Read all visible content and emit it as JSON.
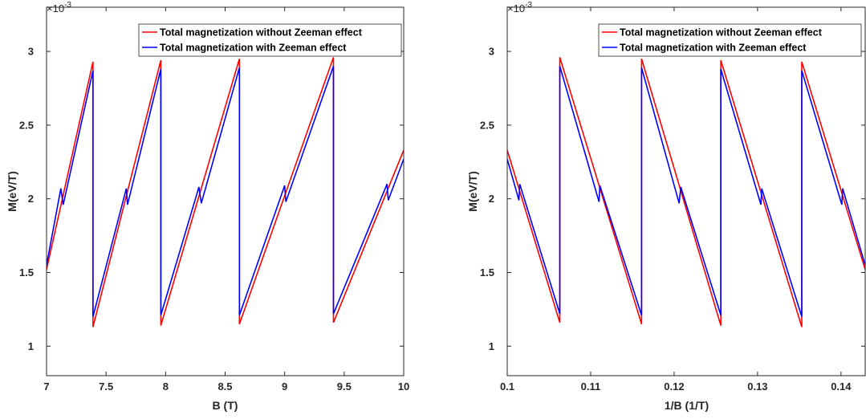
{
  "chart_data": [
    {
      "type": "line",
      "xlabel": "B (T)",
      "ylabel": "M(eV/T)",
      "exponent_base": "×10",
      "exponent_power": "-3",
      "xlim": [
        7,
        10
      ],
      "ylim": [
        0.8,
        3.3
      ],
      "xticks": [
        "7",
        "7.5",
        "8",
        "8.5",
        "9",
        "9.5",
        "10"
      ],
      "yticks": [
        "1",
        "1.5",
        "2",
        "2.5",
        "3"
      ],
      "legend_position": "top-right",
      "series": [
        {
          "name": "Total magnetization without Zeeman effect",
          "color": "#ff0000",
          "x": [
            7.0,
            7.39,
            7.39,
            7.96,
            7.96,
            8.62,
            8.62,
            9.41,
            9.41,
            10.0
          ],
          "y": [
            1.52,
            2.93,
            1.13,
            2.94,
            1.14,
            2.95,
            1.15,
            2.96,
            1.16,
            2.33
          ]
        },
        {
          "name": "Total magnetization with Zeeman effect",
          "color": "#0000ff",
          "x": [
            7.0,
            7.12,
            7.14,
            7.39,
            7.39,
            7.67,
            7.68,
            7.96,
            7.96,
            8.28,
            8.3,
            8.62,
            8.62,
            9.0,
            9.01,
            9.41,
            9.41,
            9.86,
            9.87,
            10.0
          ],
          "y": [
            1.55,
            2.07,
            1.96,
            2.87,
            1.2,
            2.07,
            1.96,
            2.88,
            1.21,
            2.08,
            1.97,
            2.89,
            1.21,
            2.09,
            1.98,
            2.9,
            1.22,
            2.1,
            1.99,
            2.27
          ]
        }
      ]
    },
    {
      "type": "line",
      "xlabel": "1/B (1/T)",
      "ylabel": "M(eV/T)",
      "exponent_base": "×10",
      "exponent_power": "-3",
      "xlim": [
        0.1,
        0.1429
      ],
      "ylim": [
        0.8,
        3.3
      ],
      "xticks": [
        "0.1",
        "0.11",
        "0.12",
        "0.13",
        "0.14"
      ],
      "yticks": [
        "1",
        "1.5",
        "2",
        "2.5",
        "3"
      ],
      "legend_position": "top-right",
      "series": [
        {
          "name": "Total magnetization without Zeeman effect",
          "color": "#ff0000",
          "x": [
            0.1,
            0.1063,
            0.1063,
            0.1161,
            0.1161,
            0.1256,
            0.1256,
            0.1353,
            0.1353,
            0.1429
          ],
          "y": [
            2.33,
            1.16,
            2.96,
            1.15,
            2.95,
            1.14,
            2.94,
            1.13,
            2.93,
            1.52
          ]
        },
        {
          "name": "Total magnetization with Zeeman effect",
          "color": "#0000ff",
          "x": [
            0.1,
            0.1014,
            0.1015,
            0.1063,
            0.1063,
            0.111,
            0.1111,
            0.1161,
            0.1161,
            0.1206,
            0.1208,
            0.1256,
            0.1256,
            0.1304,
            0.1305,
            0.1353,
            0.1353,
            0.1401,
            0.1402,
            0.1429
          ],
          "y": [
            2.27,
            1.99,
            2.1,
            1.22,
            2.9,
            1.98,
            2.09,
            1.21,
            2.89,
            1.97,
            2.08,
            1.21,
            2.88,
            1.96,
            2.07,
            1.2,
            2.87,
            1.96,
            2.07,
            1.55
          ]
        }
      ]
    }
  ]
}
